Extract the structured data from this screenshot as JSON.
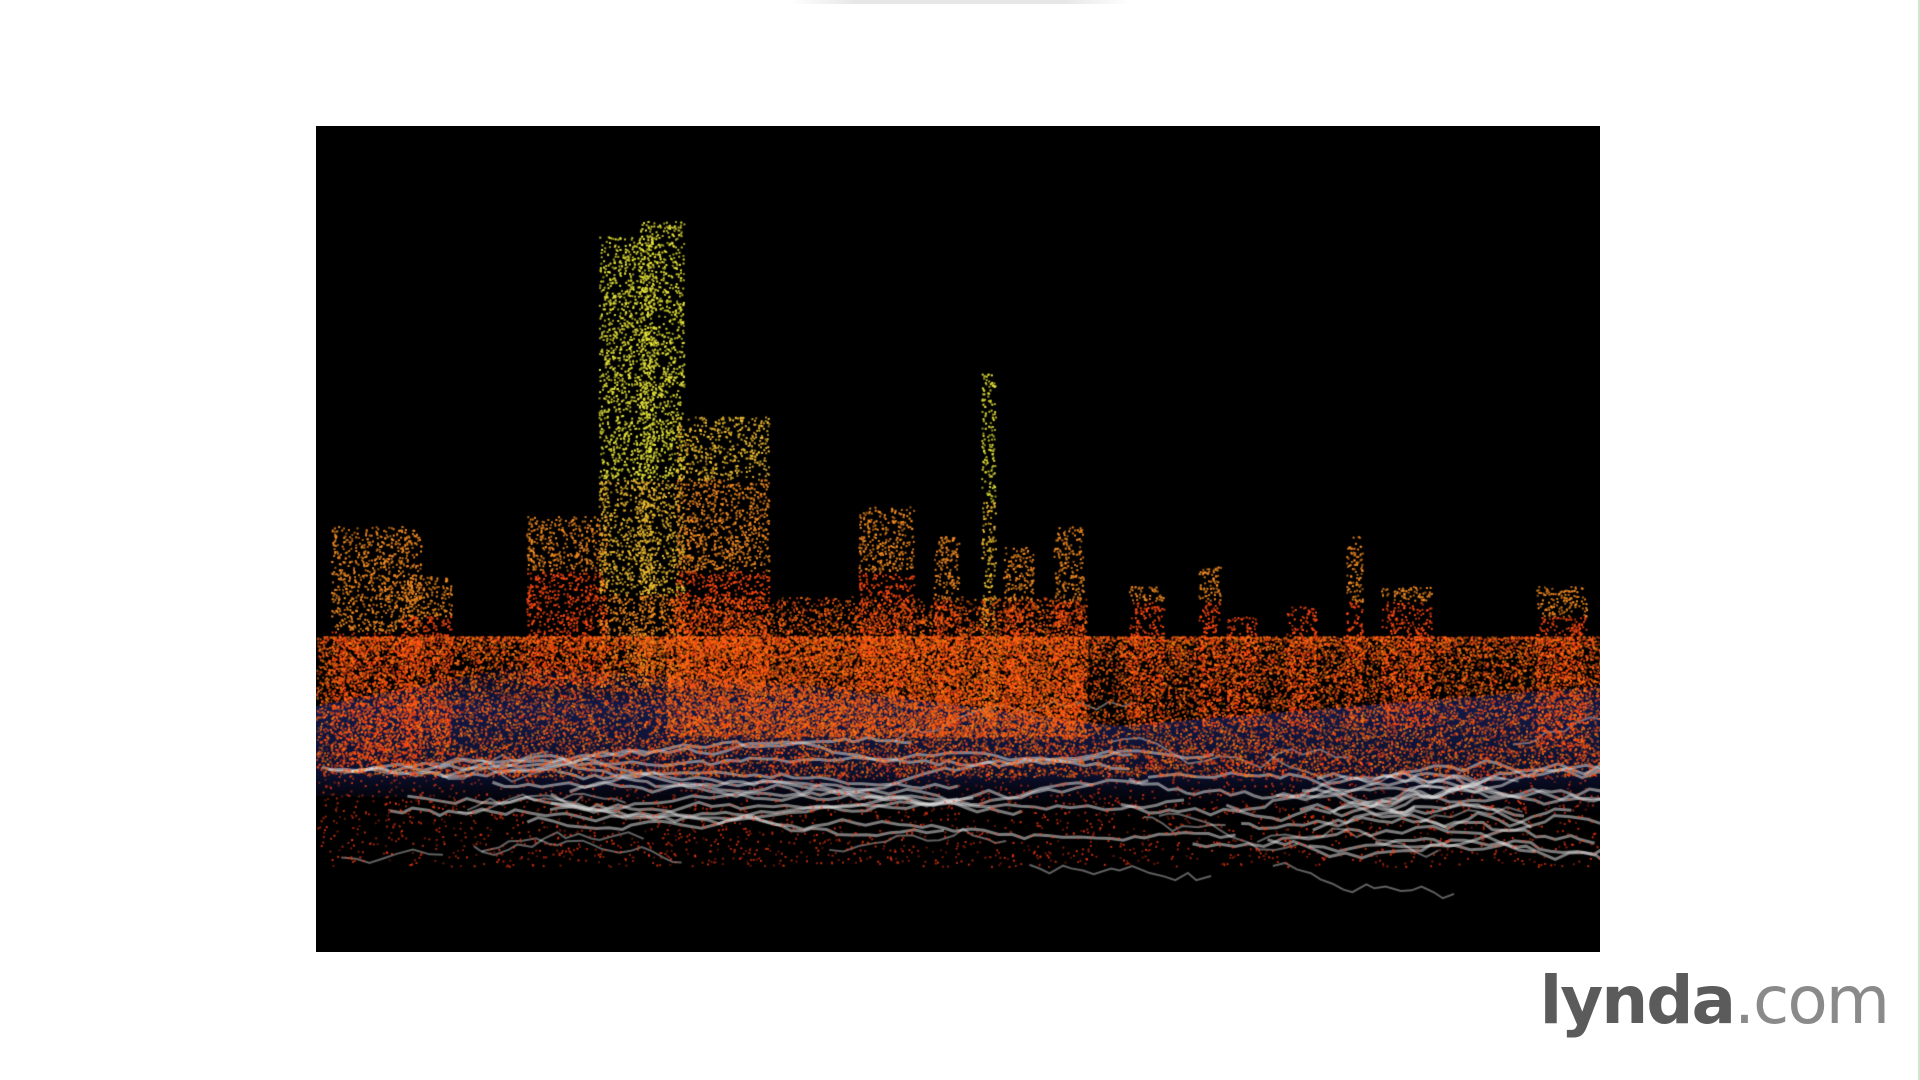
{
  "slide": {
    "image": {
      "description_name": "3d-point-cloud-city-visualization",
      "colors": {
        "background": "#000000",
        "tall_points": "#e8e63a",
        "mid_points": "#f0b030",
        "low_points": "#ff4a12",
        "ground_blue": "#1d2a78",
        "roads": "#d8d8d8"
      }
    },
    "logo": {
      "brand": "lynda",
      "tld": ".com"
    }
  }
}
